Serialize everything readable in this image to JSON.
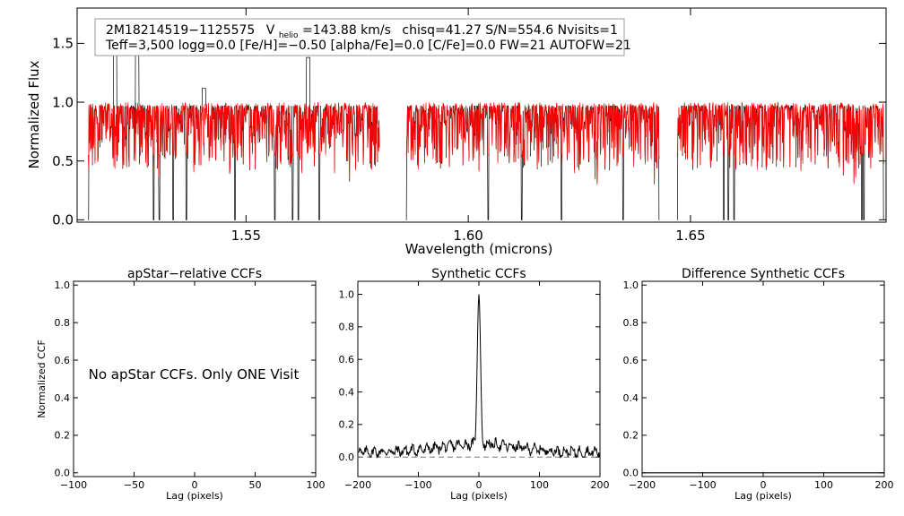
{
  "chart_data": [
    {
      "type": "line",
      "panel": "spectrum",
      "xlabel": "Wavelength (microns)",
      "ylabel": "Normalized Flux",
      "xlim": [
        1.512,
        1.694
      ],
      "ylim": [
        -0.02,
        1.8
      ],
      "xticks": [
        1.55,
        1.6,
        1.65
      ],
      "xtick_labels": [
        "1.55",
        "1.60",
        "1.65"
      ],
      "yticks": [
        0.0,
        0.5,
        1.0,
        1.5
      ],
      "ytick_labels": [
        "0.0",
        "0.5",
        "1.0",
        "1.5"
      ],
      "annotation": {
        "star_id": "2M18214519−1125575",
        "v_symbol": "V",
        "v_subscript": "helio",
        "v_value": "=143.88 km/s",
        "stats": "chisq=41.27  S/N=554.6  Nvisits=1",
        "params": "Teff=3,500 logg=0.0 [Fe/H]=−0.50 [alpha/Fe]=0.0 [C/Fe]=0.0 FW=21 AUTOFW=21"
      },
      "chips": [
        [
          1.5145,
          1.58
        ],
        [
          1.586,
          1.643
        ],
        [
          1.647,
          1.6935
        ]
      ],
      "deep_lines": [
        1.5145,
        1.5292,
        1.5305,
        1.5336,
        1.5366,
        1.5475,
        1.5565,
        1.5605,
        1.5618,
        1.5665,
        1.586,
        1.6045,
        1.612,
        1.621,
        1.6348,
        1.643,
        1.647,
        1.6575,
        1.6585,
        1.6598,
        1.6885,
        1.689,
        1.6935
      ],
      "spikes": [
        [
          1.5205,
          1.45
        ],
        [
          1.5255,
          1.55
        ],
        [
          1.5405,
          1.12
        ],
        [
          1.564,
          1.38
        ]
      ],
      "series": [
        {
          "color": "#000000"
        },
        {
          "color": "#ff0000"
        }
      ]
    },
    {
      "type": "line",
      "panel": "apstar",
      "title": "apStar−relative CCFs",
      "xlabel": "Lag (pixels)",
      "ylabel": "Normalized CCF",
      "xlim": [
        -100,
        100
      ],
      "ylim": [
        -0.02,
        1.02
      ],
      "xticks": [
        -100,
        -50,
        0,
        50,
        100
      ],
      "xtick_labels": [
        "−100",
        "−50",
        "0",
        "50",
        "100"
      ],
      "yticks": [
        0.0,
        0.2,
        0.4,
        0.6,
        0.8,
        1.0
      ],
      "ytick_labels": [
        "0.0",
        "0.2",
        "0.4",
        "0.6",
        "0.8",
        "1.0"
      ],
      "message": "No apStar CCFs.  Only ONE Visit"
    },
    {
      "type": "line",
      "panel": "synthetic",
      "title": "Synthetic CCFs",
      "xlabel": "Lag (pixels)",
      "xlim": [
        -200,
        200
      ],
      "ylim": [
        -0.12,
        1.08
      ],
      "xticks": [
        -200,
        -100,
        0,
        100,
        200
      ],
      "xtick_labels": [
        "−200",
        "−100",
        "0",
        "100",
        "200"
      ],
      "yticks": [
        0.0,
        0.2,
        0.4,
        0.6,
        0.8,
        1.0
      ],
      "ytick_labels": [
        "0.0",
        "0.2",
        "0.4",
        "0.6",
        "0.8",
        "1.0"
      ],
      "zero_line": 0.0,
      "peak": {
        "lag": 0,
        "value": 1.0,
        "width": 4
      }
    },
    {
      "type": "line",
      "panel": "difference",
      "title": "Difference Synthetic CCFs",
      "xlabel": "Lag (pixels)",
      "xlim": [
        -200,
        200
      ],
      "ylim": [
        -0.02,
        1.02
      ],
      "xticks": [
        -200,
        -100,
        0,
        100,
        200
      ],
      "xtick_labels": [
        "−200",
        "−100",
        "0",
        "100",
        "200"
      ],
      "yticks": [
        0.0,
        0.2,
        0.4,
        0.6,
        0.8,
        1.0
      ],
      "ytick_labels": [
        "0.0",
        "0.2",
        "0.4",
        "0.6",
        "0.8",
        "1.0"
      ],
      "flat_value": 0.0
    }
  ]
}
